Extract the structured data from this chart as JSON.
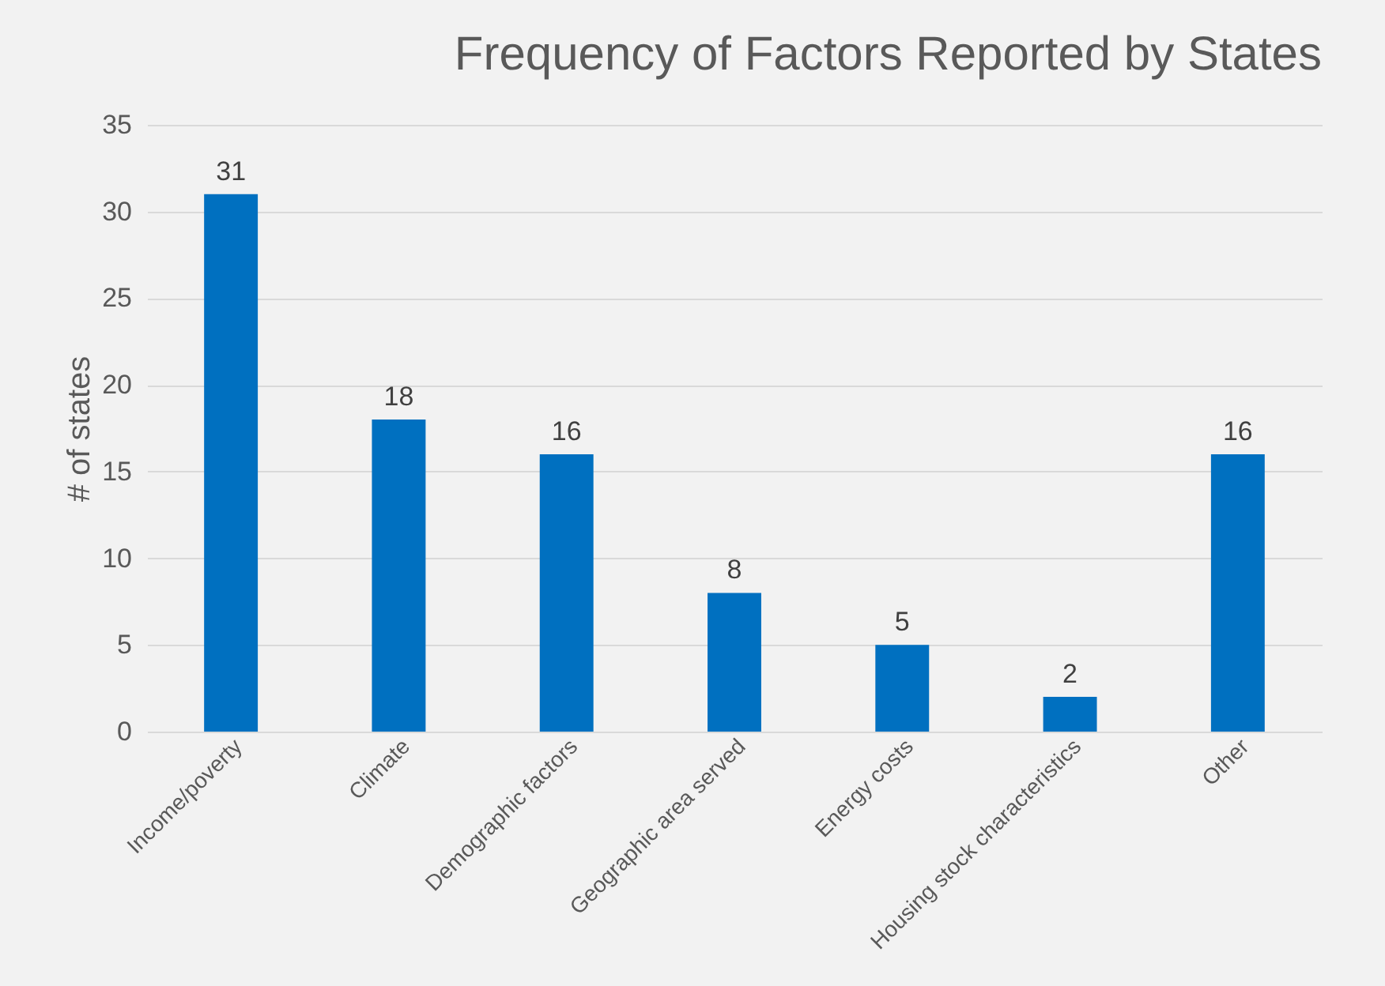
{
  "chart_data": {
    "type": "bar",
    "title": "Frequency of Factors Reported by States",
    "ylabel": "# of states",
    "categories": [
      "Income/poverty",
      "Climate",
      "Demographic factors",
      "Geographic area served",
      "Energy costs",
      "Housing stock characteristics",
      "Other"
    ],
    "values": [
      31,
      18,
      16,
      8,
      5,
      2,
      16
    ],
    "color": "#0070c0",
    "ylim": [
      0,
      35
    ],
    "yticks": [
      0,
      5,
      10,
      15,
      20,
      25,
      30,
      35
    ],
    "grid": "y",
    "data_labels": true
  }
}
